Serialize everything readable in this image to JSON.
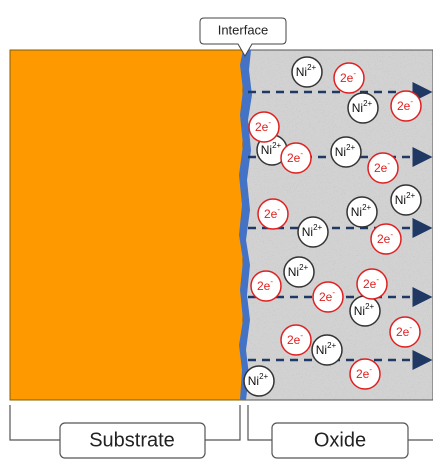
{
  "callout": {
    "title": "Interface"
  },
  "regions": {
    "substrate": "Substrate",
    "oxide": "Oxide"
  },
  "ions": [
    {
      "element": "Ni",
      "charge": "2+"
    },
    {
      "element": "Ni",
      "charge": "2+"
    },
    {
      "element": "Ni",
      "charge": "2+"
    },
    {
      "element": "Ni",
      "charge": "2+"
    },
    {
      "element": "Ni",
      "charge": "2+"
    },
    {
      "element": "Ni",
      "charge": "2+"
    },
    {
      "element": "Ni",
      "charge": "2+"
    },
    {
      "element": "Ni",
      "charge": "2+"
    },
    {
      "element": "Ni",
      "charge": "2+"
    },
    {
      "element": "Ni",
      "charge": "2+"
    },
    {
      "element": "Ni",
      "charge": "2+"
    }
  ],
  "electrons": [
    {
      "label": "2e",
      "charge": "-"
    },
    {
      "label": "2e",
      "charge": "-"
    },
    {
      "label": "2e",
      "charge": "-"
    },
    {
      "label": "2e",
      "charge": "-"
    },
    {
      "label": "2e",
      "charge": "-"
    },
    {
      "label": "2e",
      "charge": "-"
    },
    {
      "label": "2e",
      "charge": "-"
    },
    {
      "label": "2e",
      "charge": "-"
    },
    {
      "label": "2e",
      "charge": "-"
    },
    {
      "label": "2e",
      "charge": "-"
    },
    {
      "label": "2e",
      "charge": "-"
    },
    {
      "label": "2e",
      "charge": "-"
    },
    {
      "label": "2e",
      "charge": "-"
    }
  ]
}
